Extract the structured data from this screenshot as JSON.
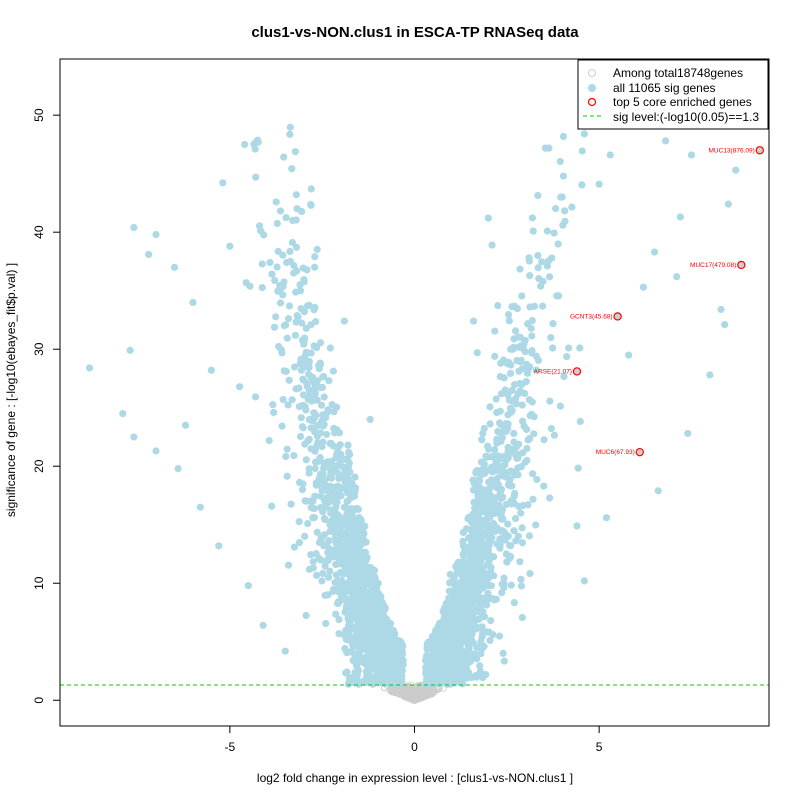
{
  "chart_data": {
    "type": "scatter",
    "title": "clus1-vs-NON.clus1 in ESCA-TP RNASeq data",
    "xlabel": "log2 fold change in expression level : [clus1-vs-NON.clus1 ]",
    "ylabel": "significance of gene : [-log10(ebayes_fit$p.val) ]",
    "xlim": [
      -9.6,
      9.6
    ],
    "ylim": [
      -2.2,
      54.8
    ],
    "x_ticks": [
      -5,
      0,
      5
    ],
    "y_ticks": [
      0,
      10,
      20,
      30,
      40,
      50
    ],
    "sig_level": 1.3,
    "colors": {
      "nonsig": "#cccccc",
      "sig": "#add8e6",
      "top": "#ff0000",
      "sigline": "#00cc00",
      "axis": "#000000"
    },
    "legend": {
      "position": "top-right",
      "entries": [
        "Among total18748genes",
        "all 11065 sig genes",
        "top 5 core enriched genes",
        "sig level:(-log10(0.05)==1.3"
      ]
    },
    "top_genes": [
      {
        "label": "MUC13(876.09)",
        "x": 9.35,
        "y": 47.0
      },
      {
        "label": "MUC17(479.08)",
        "x": 8.85,
        "y": 37.2
      },
      {
        "label": "GCNT3(45.68)",
        "x": 5.5,
        "y": 32.8
      },
      {
        "label": "ARSE(21.07)",
        "x": 4.4,
        "y": 28.1
      },
      {
        "label": "MUC6(67.93)",
        "x": 6.1,
        "y": 21.2
      }
    ],
    "sig_points_sample": [
      [
        -8.8,
        28.4
      ],
      [
        -7.9,
        24.5
      ],
      [
        -7.6,
        40.4
      ],
      [
        -7.2,
        38.1
      ],
      [
        -7.0,
        39.8
      ],
      [
        -6.5,
        37.0
      ],
      [
        -7.7,
        29.9
      ],
      [
        -7.6,
        22.5
      ],
      [
        -7.0,
        21.3
      ],
      [
        -5.0,
        38.8
      ],
      [
        -4.6,
        47.5
      ],
      [
        -4.3,
        44.7
      ],
      [
        -3.2,
        43.2
      ],
      [
        -2.8,
        42.3
      ],
      [
        -3.3,
        41.0
      ],
      [
        -3.1,
        35.5
      ],
      [
        -2.7,
        37.9
      ],
      [
        -1.9,
        32.4
      ],
      [
        -6.0,
        34.0
      ],
      [
        -5.5,
        28.2
      ],
      [
        -6.2,
        23.5
      ],
      [
        -6.4,
        19.8
      ],
      [
        -5.8,
        16.5
      ],
      [
        -5.3,
        13.2
      ],
      [
        -4.1,
        6.4
      ],
      [
        -4.5,
        9.8
      ],
      [
        -3.5,
        4.2
      ],
      [
        -2.2,
        14.8
      ],
      [
        -1.8,
        21.8
      ],
      [
        -1.2,
        24.0
      ],
      [
        2.0,
        41.2
      ],
      [
        2.1,
        38.9
      ],
      [
        4.6,
        48.4
      ],
      [
        5.3,
        46.6
      ],
      [
        6.8,
        47.8
      ],
      [
        7.5,
        46.6
      ],
      [
        8.4,
        49.4
      ],
      [
        8.7,
        45.3
      ],
      [
        8.5,
        42.4
      ],
      [
        7.2,
        41.3
      ],
      [
        8.3,
        33.4
      ],
      [
        8.4,
        32.1
      ],
      [
        8.0,
        27.8
      ],
      [
        7.4,
        22.8
      ],
      [
        6.6,
        17.9
      ],
      [
        5.2,
        15.6
      ],
      [
        4.6,
        10.2
      ],
      [
        4.4,
        14.9
      ],
      [
        3.5,
        18.3
      ],
      [
        2.6,
        24.6
      ],
      [
        1.7,
        29.7
      ],
      [
        1.6,
        32.4
      ],
      [
        3.1,
        37.8
      ],
      [
        3.6,
        40.1
      ],
      [
        5.0,
        44.1
      ],
      [
        6.5,
        38.3
      ],
      [
        7.1,
        36.2
      ],
      [
        4.0,
        43.0
      ],
      [
        6.2,
        35.3
      ],
      [
        5.8,
        29.5
      ]
    ]
  }
}
